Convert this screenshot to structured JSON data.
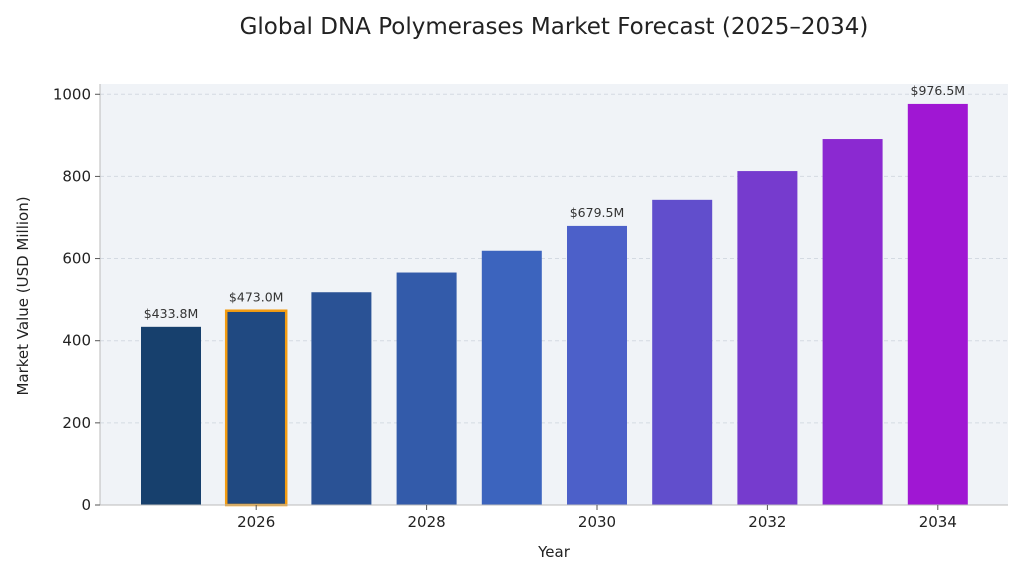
{
  "chart_data": {
    "type": "bar",
    "title": "Global DNA Polymerases Market Forecast (2025–2034)",
    "xlabel": "Year",
    "ylabel": "Market Value (USD Million)",
    "x": [
      2025,
      2026,
      2027,
      2028,
      2029,
      2030,
      2031,
      2032,
      2033,
      2034
    ],
    "values": [
      433.8,
      473.0,
      518.0,
      566.0,
      619.0,
      679.5,
      743.0,
      813.0,
      891.0,
      976.5
    ],
    "x_ticks": [
      "2026",
      "2028",
      "2030",
      "2032",
      "2034"
    ],
    "y_ticks": [
      "0",
      "200",
      "400",
      "600",
      "800",
      "1000"
    ],
    "data_labels": [
      {
        "year": 2025,
        "text": "$433.8M"
      },
      {
        "year": 2026,
        "text": "$473.0M"
      },
      {
        "year": 2030,
        "text": "$679.5M"
      },
      {
        "year": 2034,
        "text": "$976.5M"
      }
    ],
    "highlighted": 2026,
    "ylim": [
      0,
      1025
    ],
    "grid": true,
    "colors": {
      "start": "#17406d",
      "mid": "#4169c8",
      "end": "#a017d3",
      "highlight_outline": "#f39c12",
      "plot_background": "#f0f3f7",
      "grid": "#d4dae2"
    }
  }
}
